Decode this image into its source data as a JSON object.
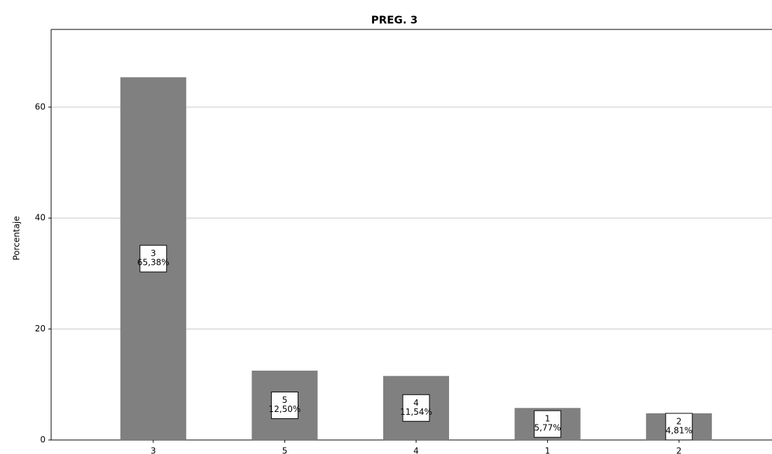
{
  "chart_data": {
    "type": "bar",
    "title": "PREG. 3",
    "y_label": "Porcentaje",
    "categories": [
      "3",
      "5",
      "4",
      "1",
      "2"
    ],
    "values": [
      65.38,
      12.5,
      11.54,
      5.77,
      4.81
    ],
    "value_labels": [
      "65,38%",
      "12,50%",
      "11,54%",
      "5,77%",
      "4,81%"
    ],
    "color": "#808080",
    "ylim": [
      0,
      74
    ],
    "yticks": [
      0,
      20,
      40,
      60
    ],
    "grid": true
  }
}
